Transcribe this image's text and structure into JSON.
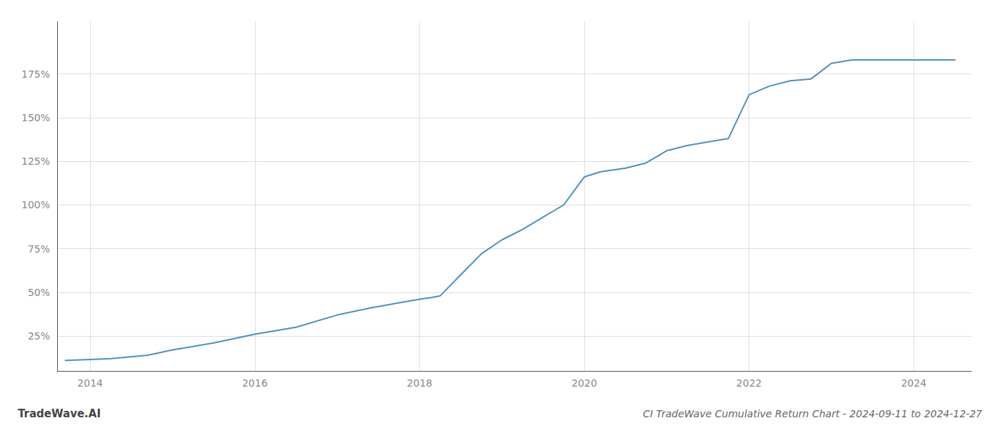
{
  "chart_data": {
    "type": "line",
    "title": "CI TradeWave Cumulative Return Chart - 2024-09-11 to 2024-12-27",
    "annotations": [
      "TradeWave.AI"
    ],
    "color": "#4a90c4",
    "x": [
      2013.7,
      2014.0,
      2014.25,
      2014.7,
      2015.0,
      2015.5,
      2016.0,
      2016.5,
      2017.0,
      2017.4,
      2017.75,
      2018.0,
      2018.15,
      2018.25,
      2018.5,
      2018.75,
      2019.0,
      2019.25,
      2019.5,
      2019.75,
      2020.0,
      2020.2,
      2020.5,
      2020.75,
      2021.0,
      2021.25,
      2021.5,
      2021.75,
      2022.0,
      2022.25,
      2022.5,
      2022.75,
      2023.0,
      2023.25,
      2023.5,
      2023.75,
      2024.0,
      2024.25,
      2024.5
    ],
    "values": [
      11,
      11.5,
      12,
      14,
      17,
      21,
      26,
      30,
      37,
      41,
      44,
      46,
      47,
      48,
      60,
      72,
      80,
      86,
      93,
      100,
      116,
      119,
      121,
      124,
      131,
      134,
      136,
      138,
      163,
      168,
      171,
      172,
      181,
      183,
      183,
      183,
      183,
      183,
      183
    ],
    "xlim": [
      2013.6,
      2024.7
    ],
    "ylim": [
      5,
      205
    ],
    "xticks": [
      2014,
      2016,
      2018,
      2020,
      2022,
      2024
    ],
    "yticks": [
      {
        "value": 25,
        "label": "25%"
      },
      {
        "value": 50,
        "label": "50%"
      },
      {
        "value": 75,
        "label": "75%"
      },
      {
        "value": 100,
        "label": "100%"
      },
      {
        "value": 125,
        "label": "125%"
      },
      {
        "value": 150,
        "label": "150%"
      },
      {
        "value": 175,
        "label": "175%"
      }
    ],
    "grid": true
  }
}
